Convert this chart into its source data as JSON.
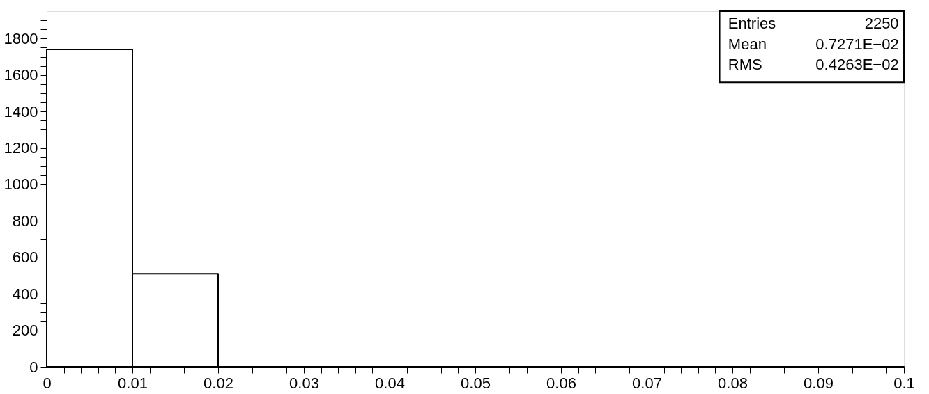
{
  "chart_data": {
    "type": "histogram",
    "bins": [
      0,
      0.01,
      0.02,
      0.03,
      0.04,
      0.05,
      0.06,
      0.07,
      0.08,
      0.09,
      0.1
    ],
    "values": [
      1740,
      510,
      0,
      0,
      0,
      0,
      0,
      0,
      0,
      0
    ],
    "color": "#000000",
    "xlim": [
      0,
      0.1
    ],
    "ylim": [
      0,
      1950
    ],
    "xticks": [
      0,
      {
        "value": 0.002,
        "label": null
      },
      {
        "value": 0.004,
        "label": null
      },
      {
        "value": 0.006,
        "label": null
      },
      {
        "value": 0.008,
        "label": null
      },
      0.01,
      {
        "value": 0.012,
        "label": null
      },
      {
        "value": 0.014,
        "label": null
      },
      {
        "value": 0.016,
        "label": null
      },
      {
        "value": 0.018,
        "label": null
      },
      0.02,
      {
        "value": 0.022,
        "label": null
      },
      {
        "value": 0.024,
        "label": null
      },
      {
        "value": 0.026,
        "label": null
      },
      {
        "value": 0.028,
        "label": null
      },
      0.03,
      {
        "value": 0.032,
        "label": null
      },
      {
        "value": 0.034,
        "label": null
      },
      {
        "value": 0.036,
        "label": null
      },
      {
        "value": 0.038,
        "label": null
      },
      0.04,
      {
        "value": 0.042,
        "label": null
      },
      {
        "value": 0.044,
        "label": null
      },
      {
        "value": 0.046,
        "label": null
      },
      {
        "value": 0.048,
        "label": null
      },
      0.05,
      {
        "value": 0.052,
        "label": null
      },
      {
        "value": 0.054,
        "label": null
      },
      {
        "value": 0.056,
        "label": null
      },
      {
        "value": 0.058,
        "label": null
      },
      0.06,
      {
        "value": 0.062,
        "label": null
      },
      {
        "value": 0.064,
        "label": null
      },
      {
        "value": 0.066,
        "label": null
      },
      {
        "value": 0.068,
        "label": null
      },
      0.07,
      {
        "value": 0.072,
        "label": null
      },
      {
        "value": 0.074,
        "label": null
      },
      {
        "value": 0.076,
        "label": null
      },
      {
        "value": 0.078,
        "label": null
      },
      0.08,
      {
        "value": 0.082,
        "label": null
      },
      {
        "value": 0.084,
        "label": null
      },
      {
        "value": 0.086,
        "label": null
      },
      {
        "value": 0.088,
        "label": null
      },
      0.09,
      {
        "value": 0.092,
        "label": null
      },
      {
        "value": 0.094,
        "label": null
      },
      {
        "value": 0.096,
        "label": null
      },
      {
        "value": 0.098,
        "label": null
      },
      0.1
    ],
    "yticks": [
      0,
      {
        "value": 50,
        "label": null
      },
      {
        "value": 100,
        "label": null
      },
      {
        "value": 150,
        "label": null
      },
      200,
      {
        "value": 250,
        "label": null
      },
      {
        "value": 300,
        "label": null
      },
      {
        "value": 350,
        "label": null
      },
      400,
      {
        "value": 450,
        "label": null
      },
      {
        "value": 500,
        "label": null
      },
      {
        "value": 550,
        "label": null
      },
      600,
      {
        "value": 650,
        "label": null
      },
      {
        "value": 700,
        "label": null
      },
      {
        "value": 750,
        "label": null
      },
      800,
      {
        "value": 850,
        "label": null
      },
      {
        "value": 900,
        "label": null
      },
      {
        "value": 950,
        "label": null
      },
      1000,
      {
        "value": 1050,
        "label": null
      },
      {
        "value": 1100,
        "label": null
      },
      {
        "value": 1150,
        "label": null
      },
      1200,
      {
        "value": 1250,
        "label": null
      },
      {
        "value": 1300,
        "label": null
      },
      {
        "value": 1350,
        "label": null
      },
      1400,
      {
        "value": 1450,
        "label": null
      },
      {
        "value": 1500,
        "label": null
      },
      {
        "value": 1550,
        "label": null
      },
      1600,
      {
        "value": 1650,
        "label": null
      },
      {
        "value": 1700,
        "label": null
      },
      {
        "value": 1750,
        "label": null
      },
      1800,
      {
        "value": 1850,
        "label": null
      },
      {
        "value": 1900,
        "label": null
      }
    ],
    "grid": false,
    "annotations": [
      "Entries",
      "2250",
      "Mean",
      "0.7271E−02",
      "RMS",
      "0.4263E−02"
    ]
  }
}
